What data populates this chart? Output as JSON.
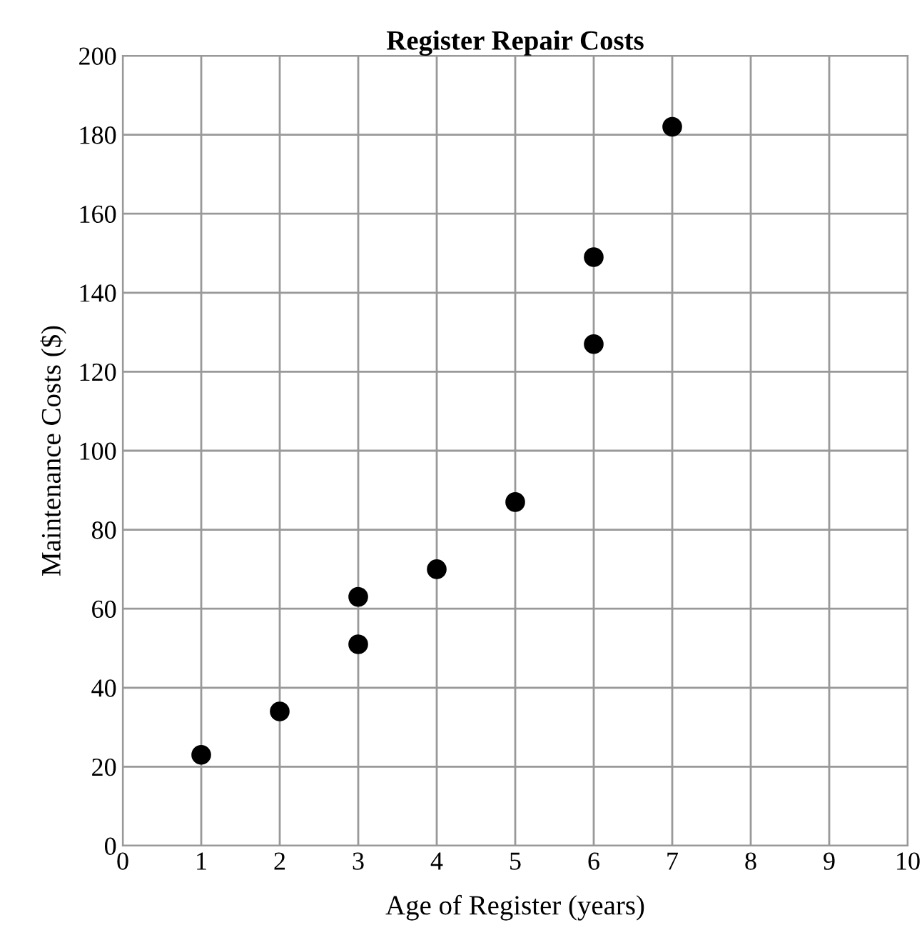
{
  "chart_data": {
    "type": "scatter",
    "title": "Register Repair Costs",
    "xlabel": "Age of Register (years)",
    "ylabel": "Maintenance Costs ($)",
    "series": [
      {
        "color": "#000000",
        "x": [
          1,
          2,
          3,
          3,
          4,
          5,
          6,
          6,
          7
        ],
        "values": [
          23,
          34,
          51,
          63,
          70,
          87,
          127,
          149,
          182
        ]
      }
    ],
    "xlim": [
      0,
      10
    ],
    "xticks": [
      0,
      1,
      2,
      3,
      4,
      5,
      6,
      7,
      8,
      9,
      10
    ],
    "ylim": [
      0,
      200
    ],
    "yticks": [
      0,
      20,
      40,
      60,
      80,
      100,
      120,
      140,
      160,
      180,
      200
    ],
    "grid": true,
    "marker": "circle"
  }
}
